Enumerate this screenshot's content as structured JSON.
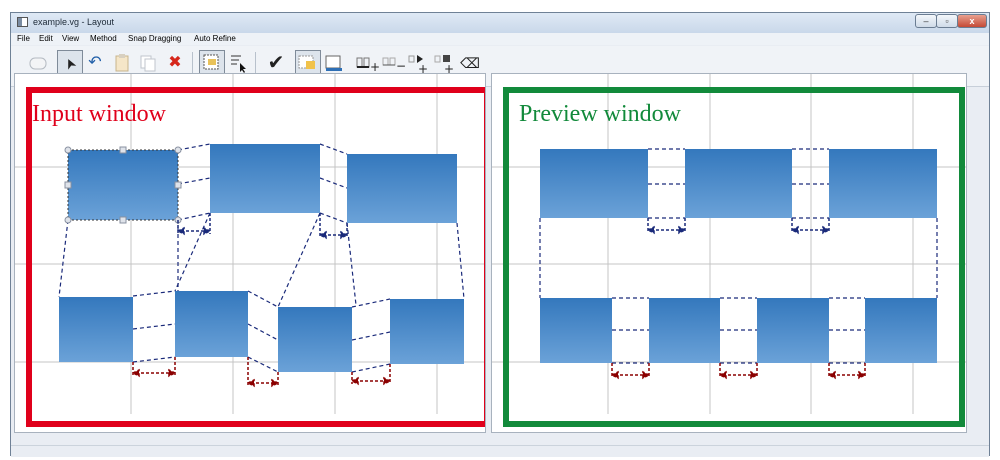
{
  "window": {
    "title": "example.vg - Layout",
    "min_glyph": "–",
    "max_glyph": "▫",
    "close_glyph": "x"
  },
  "menu": [
    "File",
    "Edit",
    "View",
    "Method",
    "Snap Dragging",
    "Auto Refine"
  ],
  "toolbar": {
    "icons": [
      "new-shape-icon",
      "pointer-icon",
      "undo-icon",
      "paste-icon",
      "copy-icon",
      "delete-icon",
      "select-rect-icon",
      "select-arrow-icon",
      "check-icon",
      "zoom-select-icon",
      "screen-icon",
      "add-horizontal-icon",
      "remove-horizontal-icon",
      "add-vertical-icon",
      "remove-vertical-icon",
      "clear-icon"
    ],
    "check_glyph": "✔",
    "delete_glyph": "✖",
    "pointer_glyph": "➤",
    "undo_glyph": "↶",
    "clear_glyph": "⌫"
  },
  "panels": {
    "input_caption": "Input window",
    "preview_caption": "Preview window"
  },
  "colors": {
    "input_border": "#e0001b",
    "preview_border": "#128a3b",
    "rect_top": "#3478bd",
    "rect_bottom": "#6ba2d8",
    "horizontal_spacer": "#1a2a7a",
    "bottom_spacer": "#8b0000"
  }
}
